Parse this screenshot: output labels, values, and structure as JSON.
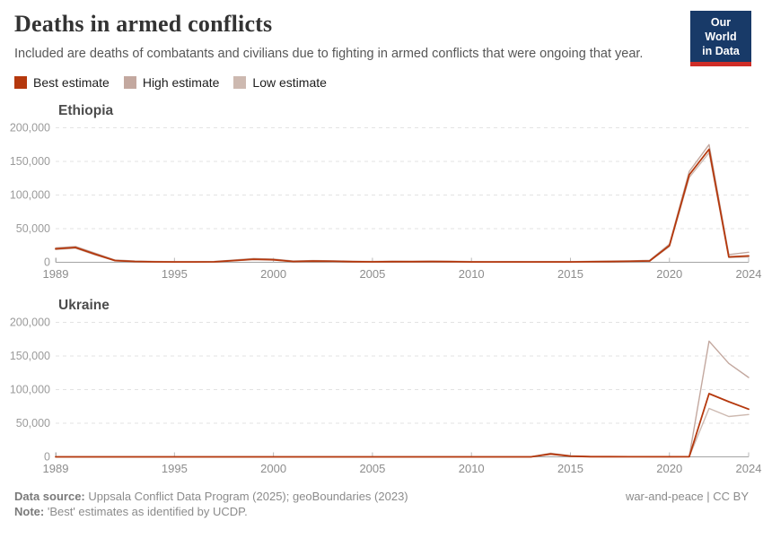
{
  "header": {
    "title": "Deaths in armed conflicts",
    "subtitle": "Included are deaths of combatants and civilians due to fighting in armed conflicts that were ongoing that year.",
    "logo": {
      "line1": "Our World",
      "line2": "in Data",
      "bg_color": "#183a68",
      "bar_color": "#cf2d27"
    }
  },
  "legend": [
    {
      "label": "Best estimate",
      "color": "#b5380d"
    },
    {
      "label": "High estimate",
      "color": "#c3a89f"
    },
    {
      "label": "Low estimate",
      "color": "#cdb9b0"
    }
  ],
  "colors": {
    "best": "#b5380d",
    "high": "#c3a89f",
    "low": "#cdb9b0",
    "axis": "#a3a3a3",
    "grid": "#e3e3e3",
    "tick": "#b8b8b8",
    "y_label": "#9b9b9b",
    "x_label": "#8d8d8d",
    "panel_title": "#4c4c4c"
  },
  "chart_data": [
    {
      "type": "line",
      "title": "Ethiopia",
      "xlabel": "",
      "ylabel": "",
      "ylim": [
        0,
        200000
      ],
      "yticks": [
        0,
        50000,
        100000,
        150000,
        200000
      ],
      "xticks": [
        1989,
        1995,
        2000,
        2005,
        2010,
        2015,
        2020,
        2024
      ],
      "grid": true,
      "x": [
        1989,
        1990,
        1991,
        1992,
        1993,
        1994,
        1995,
        1996,
        1997,
        1998,
        1999,
        2000,
        2001,
        2002,
        2003,
        2004,
        2005,
        2006,
        2007,
        2008,
        2009,
        2010,
        2011,
        2012,
        2013,
        2014,
        2015,
        2016,
        2017,
        2018,
        2019,
        2020,
        2021,
        2022,
        2023,
        2024
      ],
      "series": [
        {
          "name": "High estimate",
          "color": "#c3a89f",
          "emphasis": false,
          "values": [
            21500,
            23500,
            13500,
            3300,
            1900,
            1200,
            900,
            900,
            1200,
            3300,
            5600,
            4800,
            1900,
            2600,
            2200,
            1500,
            1200,
            1600,
            1500,
            1700,
            1500,
            1100,
            900,
            1100,
            900,
            1100,
            900,
            1400,
            1800,
            2100,
            2900,
            27000,
            135000,
            175000,
            11500,
            15000
          ]
        },
        {
          "name": "Low estimate",
          "color": "#cdb9b0",
          "emphasis": false,
          "values": [
            19000,
            21000,
            11000,
            2200,
            1000,
            600,
            400,
            400,
            600,
            2200,
            4000,
            3400,
            1000,
            1600,
            1300,
            800,
            600,
            900,
            800,
            1000,
            800,
            500,
            400,
            500,
            400,
            500,
            400,
            700,
            1000,
            1200,
            1800,
            23500,
            126000,
            163000,
            7000,
            8000
          ]
        },
        {
          "name": "Best estimate",
          "color": "#b5380d",
          "emphasis": true,
          "values": [
            20000,
            22000,
            12000,
            2500,
            1200,
            700,
            500,
            500,
            700,
            2500,
            4500,
            3800,
            1200,
            1800,
            1500,
            900,
            700,
            1000,
            900,
            1100,
            900,
            600,
            500,
            600,
            500,
            600,
            500,
            800,
            1100,
            1400,
            2000,
            25000,
            130000,
            168000,
            8000,
            9500
          ]
        }
      ]
    },
    {
      "type": "line",
      "title": "Ukraine",
      "xlabel": "",
      "ylabel": "",
      "ylim": [
        0,
        200000
      ],
      "yticks": [
        0,
        50000,
        100000,
        150000,
        200000
      ],
      "xticks": [
        1989,
        1995,
        2000,
        2005,
        2010,
        2015,
        2020,
        2024
      ],
      "grid": true,
      "x": [
        1989,
        1990,
        1991,
        1992,
        1993,
        1994,
        1995,
        1996,
        1997,
        1998,
        1999,
        2000,
        2001,
        2002,
        2003,
        2004,
        2005,
        2006,
        2007,
        2008,
        2009,
        2010,
        2011,
        2012,
        2013,
        2014,
        2015,
        2016,
        2017,
        2018,
        2019,
        2020,
        2021,
        2022,
        2023,
        2024
      ],
      "series": [
        {
          "name": "High estimate",
          "color": "#c3a89f",
          "emphasis": false,
          "values": [
            0,
            0,
            0,
            0,
            0,
            0,
            0,
            0,
            0,
            0,
            0,
            0,
            0,
            0,
            0,
            0,
            0,
            0,
            0,
            0,
            0,
            0,
            0,
            0,
            0,
            5500,
            1600,
            500,
            350,
            250,
            180,
            150,
            250,
            172000,
            139000,
            118000
          ]
        },
        {
          "name": "Low estimate",
          "color": "#cdb9b0",
          "emphasis": false,
          "values": [
            0,
            0,
            0,
            0,
            0,
            0,
            0,
            0,
            0,
            0,
            0,
            0,
            0,
            0,
            0,
            0,
            0,
            0,
            0,
            0,
            0,
            0,
            0,
            0,
            0,
            3800,
            900,
            250,
            150,
            100,
            80,
            60,
            80,
            72000,
            60000,
            63000
          ]
        },
        {
          "name": "Best estimate",
          "color": "#b5380d",
          "emphasis": true,
          "values": [
            0,
            0,
            0,
            0,
            0,
            0,
            0,
            0,
            0,
            0,
            0,
            0,
            0,
            0,
            0,
            0,
            0,
            0,
            0,
            0,
            0,
            0,
            0,
            0,
            0,
            4200,
            1100,
            300,
            200,
            150,
            100,
            80,
            100,
            94000,
            82000,
            71000
          ]
        }
      ]
    }
  ],
  "footer": {
    "source_label": "Data source:",
    "source_text": "Uppsala Conflict Data Program (2025); geoBoundaries (2023)",
    "right_pre": "war-and-peace",
    "right_sep": " | ",
    "right_cc": "CC BY",
    "note_label": "Note:",
    "note_text": "'Best' estimates as identified by UCDP."
  }
}
